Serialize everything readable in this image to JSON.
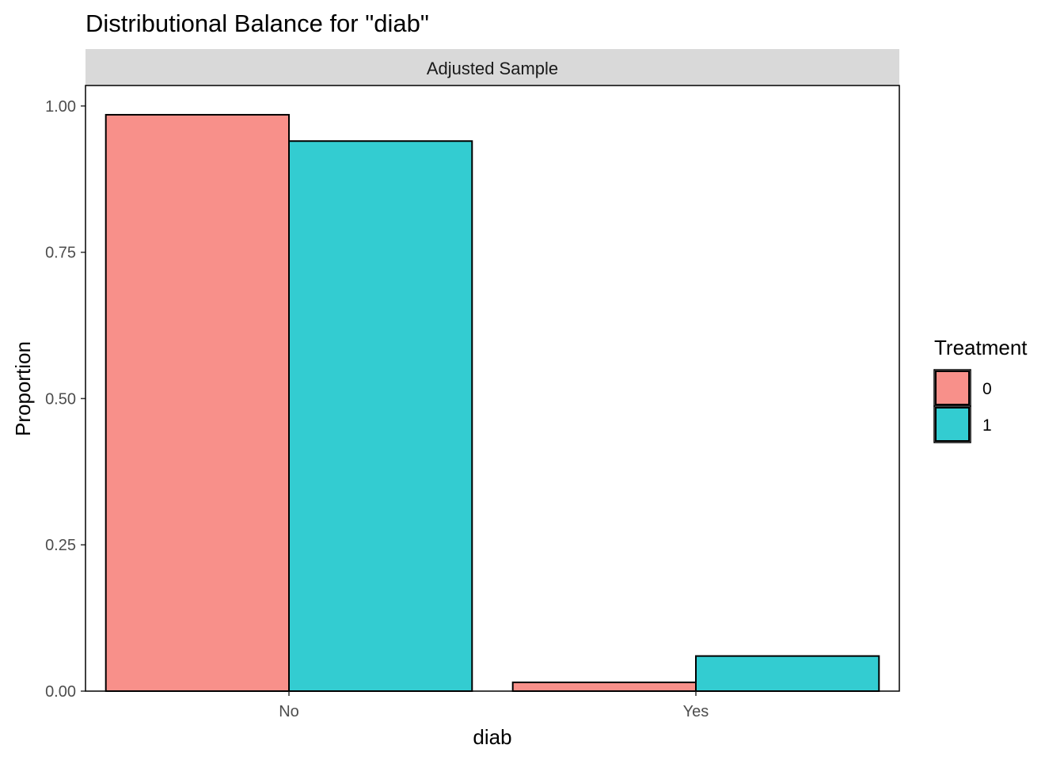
{
  "chart_data": {
    "type": "bar",
    "title": "Distributional Balance for \"diab\"",
    "facet_label": "Adjusted Sample",
    "xlabel": "diab",
    "ylabel": "Proportion",
    "categories": [
      "No",
      "Yes"
    ],
    "ylim": [
      0,
      1.035
    ],
    "yticks": [
      0,
      0.25,
      0.5,
      0.75,
      1.0
    ],
    "ytick_labels": [
      "0.00",
      "0.25",
      "0.50",
      "0.75",
      "1.00"
    ],
    "grid": false,
    "legend": {
      "title": "Treatment",
      "placement": "right",
      "entries": [
        "0",
        "1"
      ]
    },
    "series": [
      {
        "name": "0",
        "color": "#F8908A",
        "values": [
          0.985,
          0.015
        ]
      },
      {
        "name": "1",
        "color": "#33CCD1",
        "values": [
          0.94,
          0.06
        ]
      }
    ]
  }
}
